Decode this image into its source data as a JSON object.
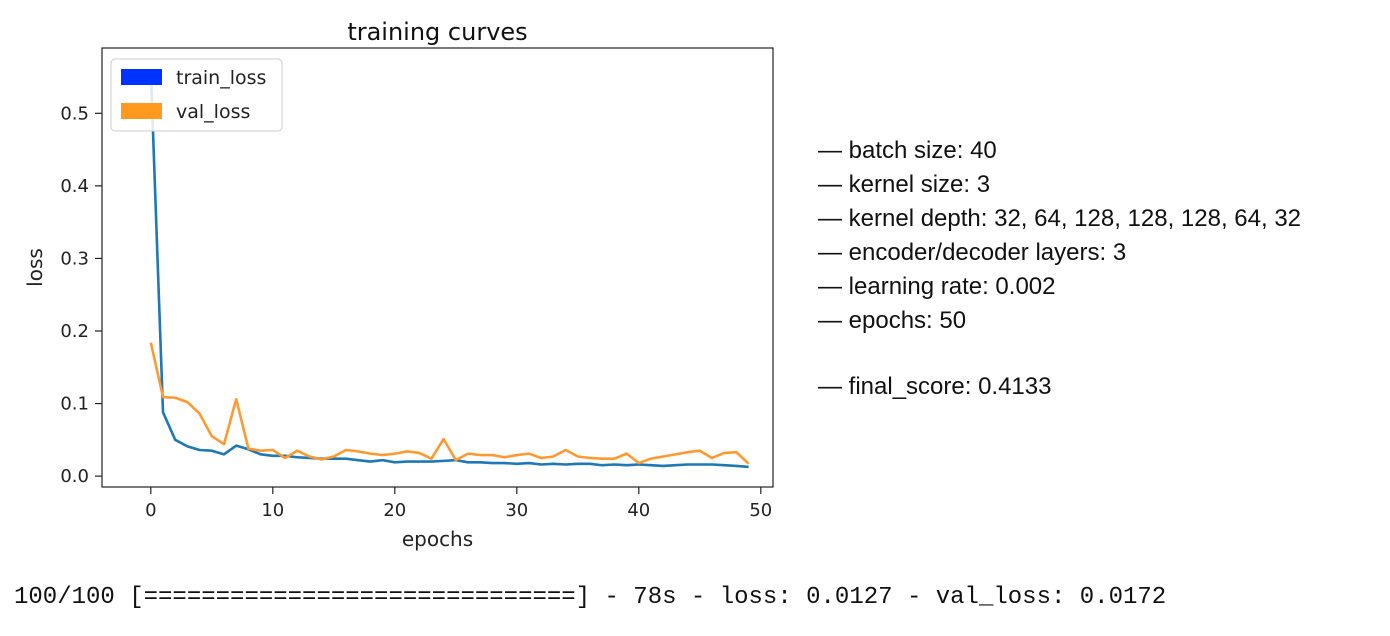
{
  "chart_data": {
    "type": "line",
    "title": "training curves",
    "xlabel": "epochs",
    "ylabel": "loss",
    "xlim": [
      -4,
      51
    ],
    "ylim": [
      -0.015,
      0.59
    ],
    "xticks": [
      0,
      10,
      20,
      30,
      40,
      50
    ],
    "yticks": [
      0.0,
      0.1,
      0.2,
      0.3,
      0.4,
      0.5
    ],
    "legend_position": "top-left",
    "series": [
      {
        "name": "train_loss",
        "color": "#1f77b4",
        "legend_color": "#0033ff",
        "x": [
          0,
          1,
          2,
          3,
          4,
          5,
          6,
          7,
          8,
          9,
          10,
          11,
          12,
          13,
          14,
          15,
          16,
          17,
          18,
          19,
          20,
          21,
          22,
          23,
          24,
          25,
          26,
          27,
          28,
          29,
          30,
          31,
          32,
          33,
          34,
          35,
          36,
          37,
          38,
          39,
          40,
          41,
          42,
          43,
          44,
          45,
          46,
          47,
          48,
          49
        ],
        "values": [
          0.56,
          0.088,
          0.05,
          0.041,
          0.036,
          0.035,
          0.03,
          0.042,
          0.037,
          0.03,
          0.028,
          0.028,
          0.026,
          0.025,
          0.024,
          0.024,
          0.024,
          0.022,
          0.02,
          0.022,
          0.019,
          0.02,
          0.02,
          0.02,
          0.021,
          0.022,
          0.019,
          0.019,
          0.018,
          0.018,
          0.017,
          0.018,
          0.016,
          0.017,
          0.016,
          0.017,
          0.017,
          0.015,
          0.016,
          0.015,
          0.016,
          0.015,
          0.014,
          0.015,
          0.016,
          0.016,
          0.016,
          0.015,
          0.014,
          0.0127
        ]
      },
      {
        "name": "val_loss",
        "color": "#ff9a33",
        "legend_color": "#ff9a1f",
        "x": [
          0,
          1,
          2,
          3,
          4,
          5,
          6,
          7,
          8,
          9,
          10,
          11,
          12,
          13,
          14,
          15,
          16,
          17,
          18,
          19,
          20,
          21,
          22,
          23,
          24,
          25,
          26,
          27,
          28,
          29,
          30,
          31,
          32,
          33,
          34,
          35,
          36,
          37,
          38,
          39,
          40,
          41,
          42,
          43,
          44,
          45,
          46,
          47,
          48,
          49
        ],
        "values": [
          0.184,
          0.109,
          0.108,
          0.102,
          0.086,
          0.055,
          0.044,
          0.106,
          0.038,
          0.035,
          0.036,
          0.025,
          0.035,
          0.027,
          0.023,
          0.027,
          0.036,
          0.034,
          0.031,
          0.029,
          0.031,
          0.034,
          0.032,
          0.024,
          0.051,
          0.022,
          0.031,
          0.029,
          0.029,
          0.026,
          0.029,
          0.031,
          0.025,
          0.027,
          0.036,
          0.027,
          0.025,
          0.024,
          0.024,
          0.031,
          0.018,
          0.024,
          0.027,
          0.03,
          0.033,
          0.035,
          0.025,
          0.032,
          0.033,
          0.0172
        ]
      }
    ]
  },
  "params": [
    "— batch size: 40",
    "— kernel size: 3",
    "— kernel depth: 32, 64, 128, 128, 128, 64, 32",
    "— encoder/decoder layers: 3",
    "— learning rate: 0.002",
    "— epochs: 50",
    "— final_score: 0.4133"
  ],
  "log_line": "100/100 [==============================] - 78s - loss: 0.0127 - val_loss: 0.0172"
}
